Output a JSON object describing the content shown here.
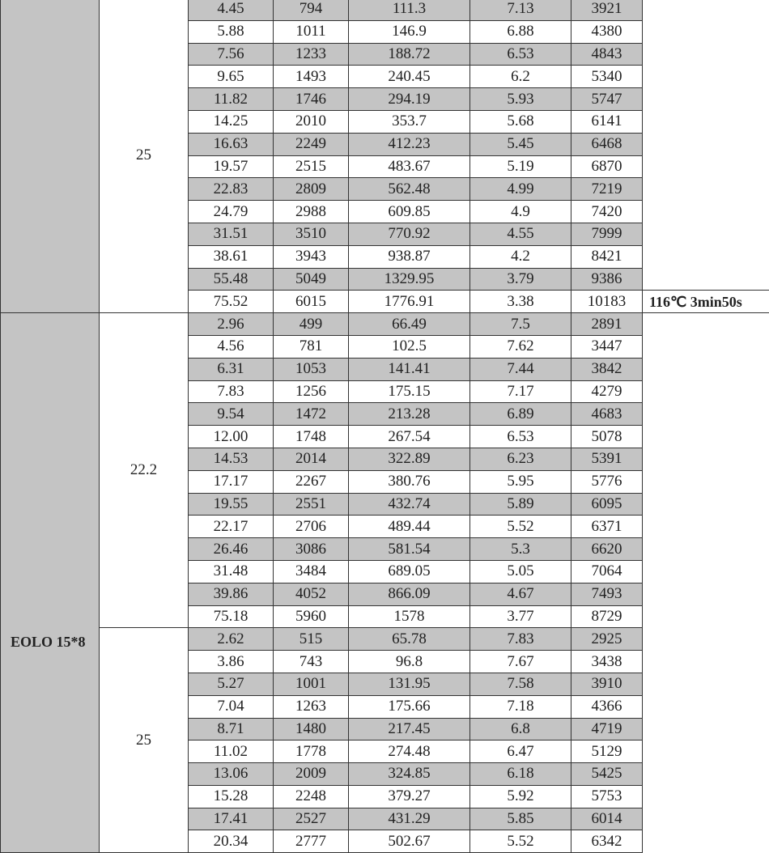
{
  "colors": {
    "shaded_row": "#c4c4c4",
    "white_row": "#ffffff",
    "border": "#333333"
  },
  "blocks": [
    {
      "model": "",
      "voltage": "25",
      "rows": [
        [
          "4.45",
          "794",
          "111.3",
          "7.13",
          "3921"
        ],
        [
          "5.88",
          "1011",
          "146.9",
          "6.88",
          "4380"
        ],
        [
          "7.56",
          "1233",
          "188.72",
          "6.53",
          "4843"
        ],
        [
          "9.65",
          "1493",
          "240.45",
          "6.2",
          "5340"
        ],
        [
          "11.82",
          "1746",
          "294.19",
          "5.93",
          "5747"
        ],
        [
          "14.25",
          "2010",
          "353.7",
          "5.68",
          "6141"
        ],
        [
          "16.63",
          "2249",
          "412.23",
          "5.45",
          "6468"
        ],
        [
          "19.57",
          "2515",
          "483.67",
          "5.19",
          "6870"
        ],
        [
          "22.83",
          "2809",
          "562.48",
          "4.99",
          "7219"
        ],
        [
          "24.79",
          "2988",
          "609.85",
          "4.9",
          "7420"
        ],
        [
          "31.51",
          "3510",
          "770.92",
          "4.55",
          "7999"
        ],
        [
          "38.61",
          "3943",
          "938.87",
          "4.2",
          "8421"
        ],
        [
          "55.48",
          "5049",
          "1329.95",
          "3.79",
          "9386"
        ],
        [
          "75.52",
          "6015",
          "1776.91",
          "3.38",
          "10183"
        ]
      ],
      "note": "116℃ 3min50s"
    },
    {
      "model": "EOLO 15*8",
      "voltage": "22.2",
      "rows": [
        [
          "2.96",
          "499",
          "66.49",
          "7.5",
          "2891"
        ],
        [
          "4.56",
          "781",
          "102.5",
          "7.62",
          "3447"
        ],
        [
          "6.31",
          "1053",
          "141.41",
          "7.44",
          "3842"
        ],
        [
          "7.83",
          "1256",
          "175.15",
          "7.17",
          "4279"
        ],
        [
          "9.54",
          "1472",
          "213.28",
          "6.89",
          "4683"
        ],
        [
          "12.00",
          "1748",
          "267.54",
          "6.53",
          "5078"
        ],
        [
          "14.53",
          "2014",
          "322.89",
          "6.23",
          "5391"
        ],
        [
          "17.17",
          "2267",
          "380.76",
          "5.95",
          "5776"
        ],
        [
          "19.55",
          "2551",
          "432.74",
          "5.89",
          "6095"
        ],
        [
          "22.17",
          "2706",
          "489.44",
          "5.52",
          "6371"
        ],
        [
          "26.46",
          "3086",
          "581.54",
          "5.3",
          "6620"
        ],
        [
          "31.48",
          "3484",
          "689.05",
          "5.05",
          "7064"
        ],
        [
          "39.86",
          "4052",
          "866.09",
          "4.67",
          "7493"
        ],
        [
          "75.18",
          "5960",
          "1578",
          "3.77",
          "8729"
        ]
      ]
    },
    {
      "voltage": "25",
      "rows": [
        [
          "2.62",
          "515",
          "65.78",
          "7.83",
          "2925"
        ],
        [
          "3.86",
          "743",
          "96.8",
          "7.67",
          "3438"
        ],
        [
          "5.27",
          "1001",
          "131.95",
          "7.58",
          "3910"
        ],
        [
          "7.04",
          "1263",
          "175.66",
          "7.18",
          "4366"
        ],
        [
          "8.71",
          "1480",
          "217.45",
          "6.8",
          "4719"
        ],
        [
          "11.02",
          "1778",
          "274.48",
          "6.47",
          "5129"
        ],
        [
          "13.06",
          "2009",
          "324.85",
          "6.18",
          "5425"
        ],
        [
          "15.28",
          "2248",
          "379.27",
          "5.92",
          "5753"
        ],
        [
          "17.41",
          "2527",
          "431.29",
          "5.85",
          "6014"
        ],
        [
          "20.34",
          "2777",
          "502.67",
          "5.52",
          "6342"
        ]
      ]
    }
  ]
}
